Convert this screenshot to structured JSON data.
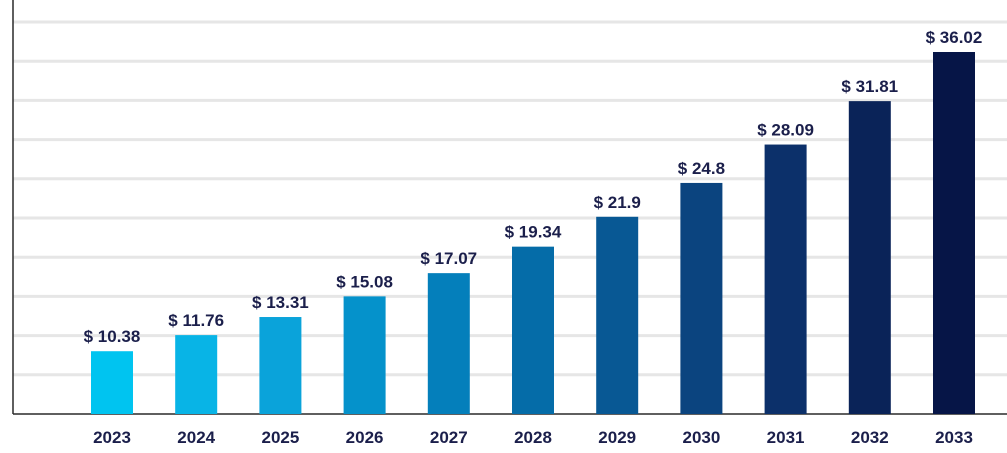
{
  "chart_data": {
    "type": "bar",
    "title": "",
    "xlabel": "",
    "ylabel": "",
    "categories": [
      "2023",
      "2024",
      "2025",
      "2026",
      "2027",
      "2028",
      "2029",
      "2030",
      "2031",
      "2032",
      "2033"
    ],
    "values": [
      10.38,
      11.76,
      13.31,
      15.08,
      17.07,
      19.34,
      21.9,
      24.8,
      28.09,
      31.81,
      36.02
    ],
    "value_labels": [
      "$ 10.38",
      "$ 11.76",
      "$ 13.31",
      "$ 15.08",
      "$ 17.07",
      "$ 19.34",
      "$ 21.9",
      "$ 24.8",
      "$ 28.09",
      "$ 31.81",
      "$ 36.02"
    ],
    "ylim": [
      5,
      40
    ],
    "grid": true,
    "legend": "none",
    "bar_colors": [
      "#00c4f0",
      "#08b4e6",
      "#0aa3da",
      "#0592cb",
      "#047fbb",
      "#056ca8",
      "#085894",
      "#0b447f",
      "#0c306a",
      "#0a2358",
      "#061547"
    ]
  }
}
